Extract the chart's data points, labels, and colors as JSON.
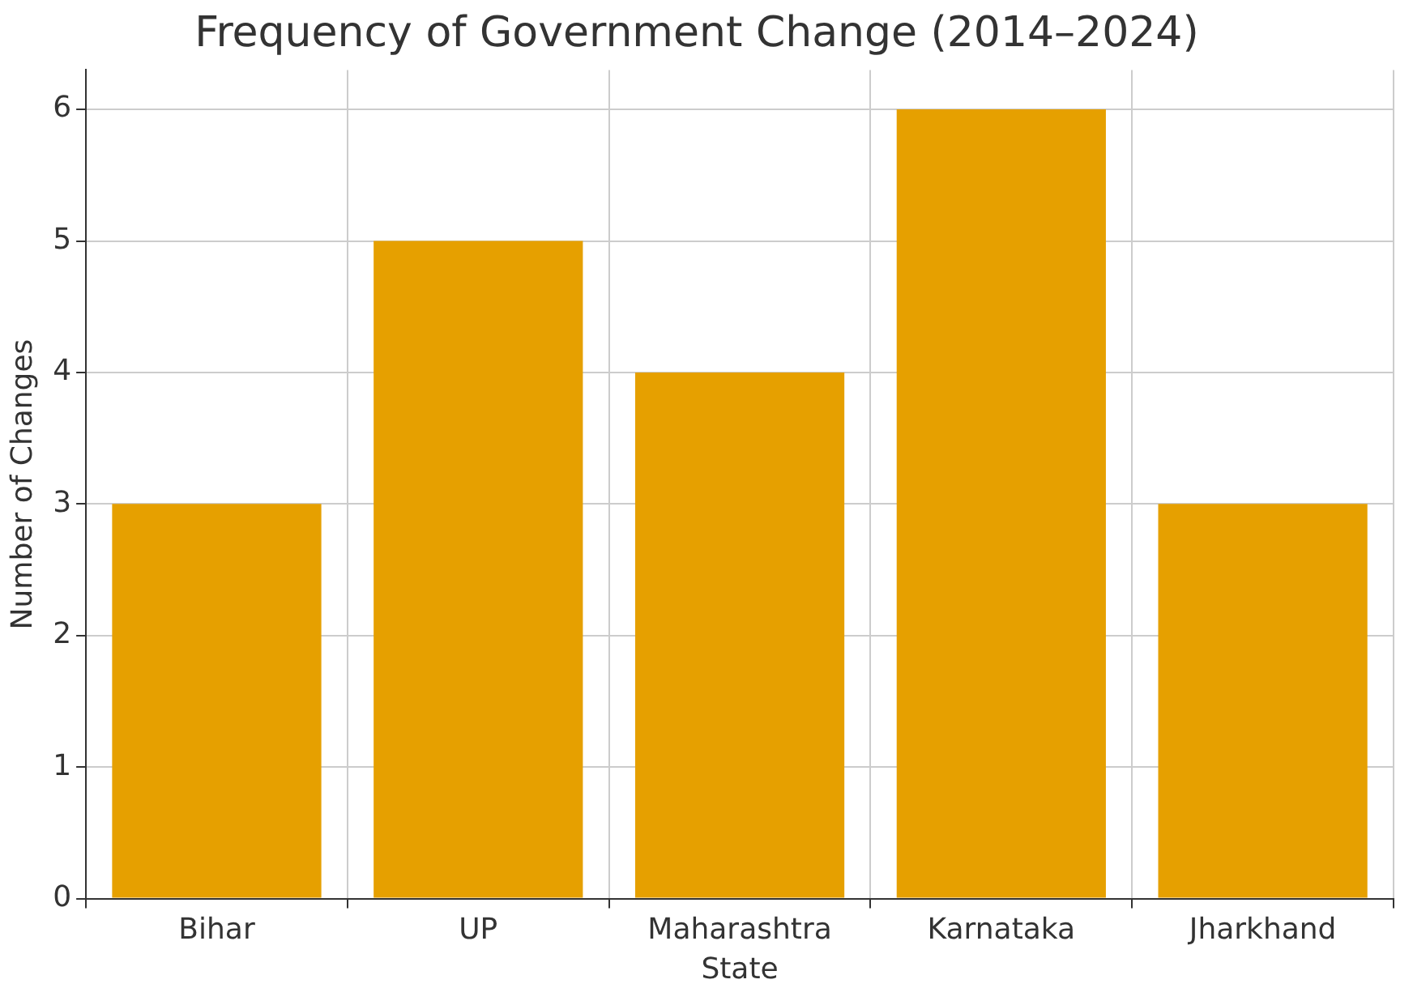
{
  "chart_data": {
    "type": "bar",
    "title": "Frequency of Government Change (2014–2024)",
    "xlabel": "State",
    "ylabel": "Number of Changes",
    "categories": [
      "Bihar",
      "UP",
      "Maharashtra",
      "Karnataka",
      "Jharkhand"
    ],
    "values": [
      3,
      5,
      4,
      6,
      3
    ],
    "color": "#e6a000",
    "ylim": [
      0,
      6.3
    ],
    "yticks": [
      0,
      1,
      2,
      3,
      4,
      5,
      6
    ],
    "grid": true
  }
}
